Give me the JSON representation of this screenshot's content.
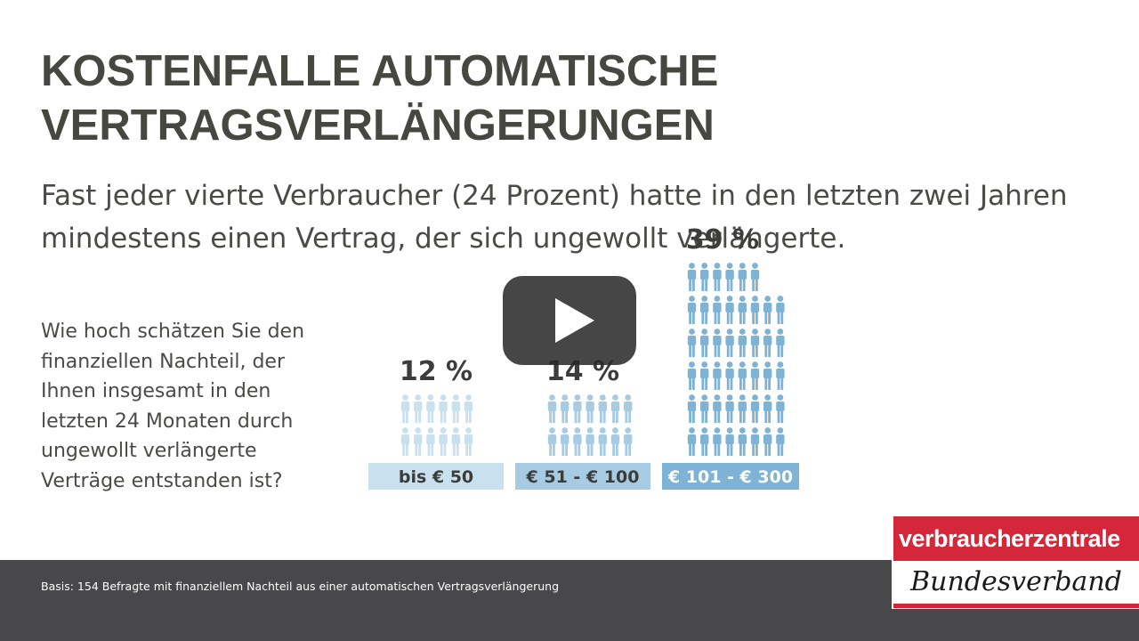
{
  "title": {
    "line1": "KOSTENFALLE AUTOMATISCHE",
    "line2": "VERTRAGSVERLÄNGERUNGEN"
  },
  "subtitle": {
    "line1": "Fast jeder vierte Verbraucher (24 Prozent) hatte in den letzten zwei Jahren",
    "line2": "mindestens einen Vertrag, der sich ungewollt verlängerte."
  },
  "question": {
    "lines": [
      "Wie hoch schätzen Sie den",
      "finanziellen Nachteil, der",
      "Ihnen insgesamt in den",
      "letzten 24 Monaten durch",
      "ungewollt verlängerte",
      "Verträge entstanden ist?"
    ]
  },
  "chart_data": {
    "type": "bar",
    "categories": [
      "bis € 50",
      "€ 51 - € 100",
      "€ 101 - € 300"
    ],
    "values": [
      12,
      14,
      39
    ],
    "value_labels": [
      "12 %",
      "14 %",
      "39 %"
    ],
    "unit": "%",
    "colors": [
      "#c9e1ee",
      "#a6cbe2",
      "#7fb3d5"
    ],
    "icon": "person-icon"
  },
  "video": {
    "icon": "play-icon"
  },
  "footer": {
    "note": "Basis: 154 Befragte mit finanziellem Nachteil aus einer automatischen Vertragsverlängerung"
  },
  "logo": {
    "top": "verbraucherzentrale",
    "bottom": "Bundesverband",
    "color": "#d6273a"
  }
}
